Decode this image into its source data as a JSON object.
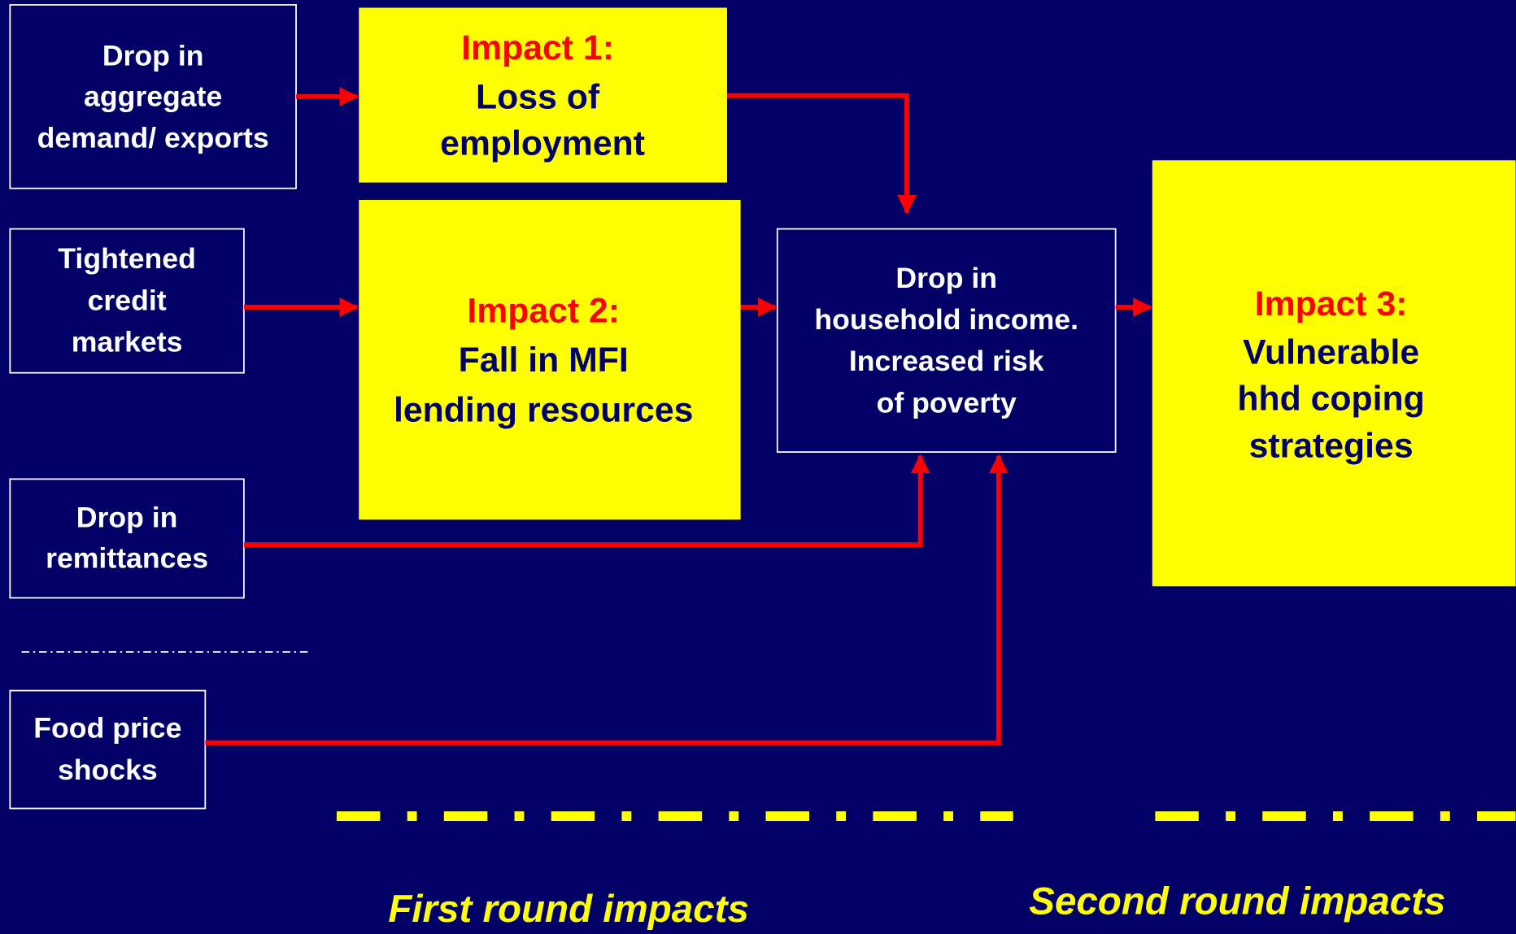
{
  "shocks": [
    {
      "lines": [
        "Drop in",
        "aggregate",
        "demand/ exports"
      ]
    },
    {
      "lines": [
        "Tightened",
        "credit",
        "markets"
      ]
    },
    {
      "lines": [
        "Drop in",
        "remittances"
      ]
    },
    {
      "lines": [
        "Food price",
        "shocks"
      ]
    }
  ],
  "impacts": [
    {
      "heading": "Impact 1:",
      "lines": [
        "Loss of",
        "employment"
      ]
    },
    {
      "heading": "Impact 2:",
      "lines": [
        "Fall in MFI",
        "lending resources"
      ]
    },
    {
      "heading": "Impact 3:",
      "lines": [
        "Vulnerable",
        "hhd coping",
        "strategies"
      ]
    }
  ],
  "outcome": {
    "lines": [
      "Drop in",
      "household income.",
      "Increased risk",
      "of poverty"
    ]
  },
  "rounds": [
    "First round impacts",
    "Second round impacts"
  ]
}
